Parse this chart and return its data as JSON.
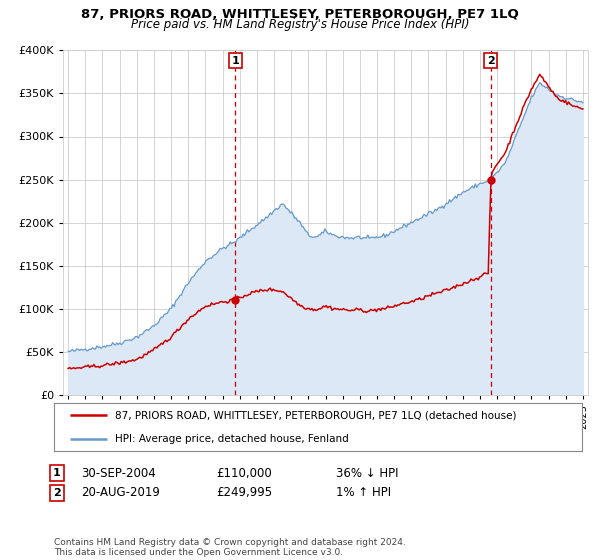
{
  "title": "87, PRIORS ROAD, WHITTLESEY, PETERBOROUGH, PE7 1LQ",
  "subtitle": "Price paid vs. HM Land Registry's House Price Index (HPI)",
  "legend_line1": "87, PRIORS ROAD, WHITTLESEY, PETERBOROUGH, PE7 1LQ (detached house)",
  "legend_line2": "HPI: Average price, detached house, Fenland",
  "annotation1_date": "30-SEP-2004",
  "annotation1_price": "£110,000",
  "annotation1_hpi": "36% ↓ HPI",
  "annotation1_year": 2004.75,
  "annotation1_value": 110000,
  "annotation2_date": "20-AUG-2019",
  "annotation2_price": "£249,995",
  "annotation2_hpi": "1% ↑ HPI",
  "annotation2_year": 2019.63,
  "annotation2_value": 249995,
  "footer": "Contains HM Land Registry data © Crown copyright and database right 2024.\nThis data is licensed under the Open Government Licence v3.0.",
  "property_color": "#cc0000",
  "hpi_color": "#6699cc",
  "hpi_fill_color": "#dce8f5",
  "ylim": [
    0,
    400000
  ],
  "yticks": [
    0,
    50000,
    100000,
    150000,
    200000,
    250000,
    300000,
    350000,
    400000
  ],
  "xlim_start": 1994.7,
  "xlim_end": 2025.3,
  "background_color": "#ffffff",
  "plot_bg_color": "#ffffff"
}
